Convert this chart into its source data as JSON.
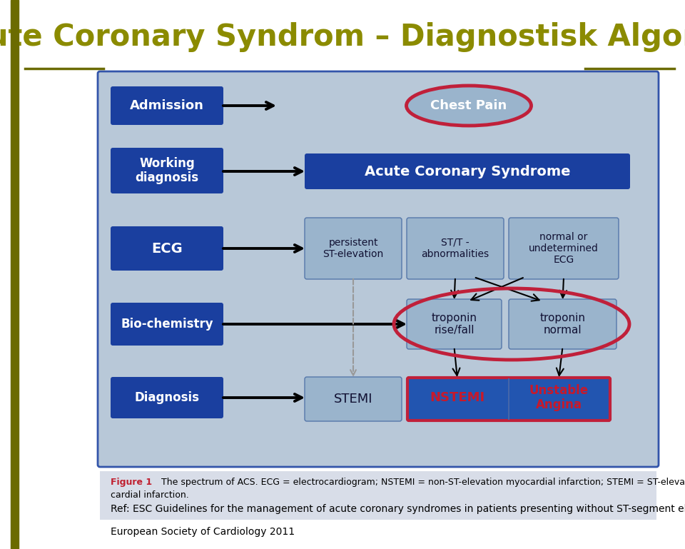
{
  "title": "Acute Coronary Syndrom – Diagnostisk Algoritm",
  "title_color": "#8b8b00",
  "title_fontsize": 30,
  "bg_color": "#ffffff",
  "left_bar_color": "#6b6b00",
  "diagram_bg": "#b8c8d8",
  "dark_blue": "#1a3f9f",
  "dark_blue2": "#1a3080",
  "medium_blue": "#2255b0",
  "light_box_bg": "#9ab4cc",
  "red_border": "#c0203a",
  "nstemi_text_color": "#c8192a",
  "unstable_text_color": "#c8192a",
  "white": "#ffffff",
  "black": "#111111",
  "gray_arrow": "#999999",
  "caption_bg": "#d8dde8",
  "figure_bold": "#c02030",
  "ref_line1": "Ref: ESC Guidelines for the management of acute coronary syndromes in patients presenting without ST-segment elevation,",
  "ref_line2": "European Society of Cardiology 2011",
  "cap_line1": "Figure 1",
  "cap_rest1": "  The spectrum of ACS. ECG = electrocardiogram; NSTEMI = non-ST-elevation myocardial infarction; STEMI = ST-elevation myo-",
  "cap_line2": "cardial infarction."
}
